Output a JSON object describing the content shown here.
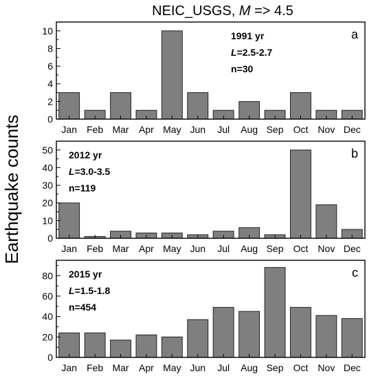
{
  "figure": {
    "title_prefix": "NEIC_USGS, ",
    "title_italic": "M",
    "title_suffix": " => 4.5",
    "ylabel": "Earthquake  counts"
  },
  "chart_data": [
    {
      "type": "bar",
      "panel_letter": "a",
      "annotation": {
        "year": "1991 yr",
        "l_symbol": "L",
        "l_range": "=2.5-2.7",
        "n": "n=30"
      },
      "categories": [
        "Jan",
        "Feb",
        "Mar",
        "Apr",
        "May",
        "Jun",
        "Jul",
        "Aug",
        "Sep",
        "Oct",
        "Nov",
        "Dec"
      ],
      "values": [
        3,
        1,
        3,
        1,
        10,
        3,
        1,
        2,
        1,
        3,
        1,
        1
      ],
      "ylim": [
        0,
        11
      ],
      "yticks": [
        0,
        2,
        4,
        6,
        8,
        10
      ],
      "bar_color": "#7f7f7f",
      "grid": false
    },
    {
      "type": "bar",
      "panel_letter": "b",
      "annotation": {
        "year": "2012 yr",
        "l_symbol": "L",
        "l_range": "=3.0-3.5",
        "n": "n=119"
      },
      "categories": [
        "Jan",
        "Feb",
        "Mar",
        "Apr",
        "May",
        "Jun",
        "Jul",
        "Aug",
        "Sep",
        "Oct",
        "Nov",
        "Dec"
      ],
      "values": [
        20,
        1,
        4,
        3,
        3,
        2,
        4,
        6,
        2,
        50,
        19,
        5
      ],
      "ylim": [
        0,
        55
      ],
      "yticks": [
        0,
        10,
        20,
        30,
        40,
        50
      ],
      "bar_color": "#7f7f7f",
      "grid": false
    },
    {
      "type": "bar",
      "panel_letter": "c",
      "annotation": {
        "year": "2015 yr",
        "l_symbol": "L",
        "l_range": "=1.5-1.8",
        "n": "n=454"
      },
      "categories": [
        "Jan",
        "Feb",
        "Mar",
        "Apr",
        "May",
        "Jun",
        "Jul",
        "Aug",
        "Sep",
        "Oct",
        "Nov",
        "Dec"
      ],
      "values": [
        24,
        24,
        17,
        22,
        20,
        37,
        49,
        45,
        88,
        49,
        41,
        38
      ],
      "ylim": [
        0,
        95
      ],
      "yticks": [
        0,
        20,
        40,
        60,
        80
      ],
      "bar_color": "#7f7f7f",
      "grid": false
    }
  ]
}
